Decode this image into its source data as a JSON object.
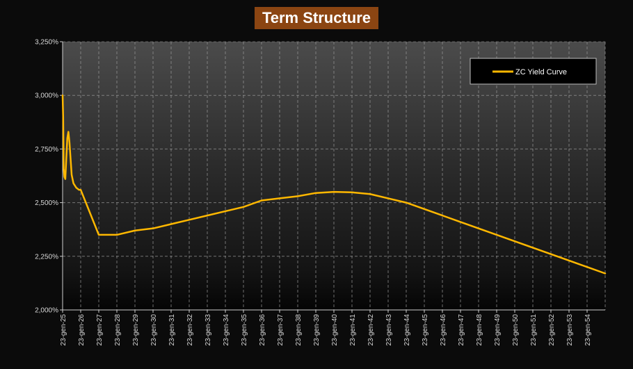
{
  "chart_data": {
    "type": "line",
    "title": "Term Structure",
    "xlabel": "",
    "ylabel": "",
    "ylim": [
      0.02,
      0.0325
    ],
    "y_ticks": [
      "2,000%",
      "2,250%",
      "2,500%",
      "2,750%",
      "3,000%",
      "3,250%"
    ],
    "x_ticks": [
      "23-gen-25",
      "23-gen-26",
      "23-gen-27",
      "23-gen-28",
      "23-gen-29",
      "23-gen-30",
      "23-gen-31",
      "23-gen-32",
      "23-gen-33",
      "23-gen-34",
      "23-gen-35",
      "23-gen-36",
      "23-gen-37",
      "23-gen-38",
      "23-gen-39",
      "23-gen-40",
      "23-gen-41",
      "23-gen-42",
      "23-gen-43",
      "23-gen-44",
      "23-gen-45",
      "23-gen-46",
      "23-gen-47",
      "23-gen-48",
      "23-gen-49",
      "23-gen-50",
      "23-gen-51",
      "23-gen-52",
      "23-gen-53",
      "23-gen-54"
    ],
    "grid": true,
    "legend_position": "top-right",
    "series": [
      {
        "name": "ZC Yield Curve",
        "color": "#ffb800",
        "x": [
          2025.0,
          2025.03,
          2025.06,
          2025.1,
          2025.15,
          2025.2,
          2025.26,
          2025.32,
          2025.38,
          2025.5,
          2025.6,
          2025.75,
          2025.9,
          2026.0,
          2027.0,
          2028.0,
          2029.0,
          2030.0,
          2031.0,
          2032.0,
          2033.0,
          2034.0,
          2035.0,
          2036.0,
          2037.0,
          2038.0,
          2039.0,
          2040.0,
          2041.0,
          2042.0,
          2043.0,
          2044.0,
          2045.0,
          2046.0,
          2047.0,
          2048.0,
          2049.0,
          2050.0,
          2051.0,
          2052.0,
          2053.0,
          2054.0,
          2055.0
        ],
        "y": [
          0.03,
          0.029,
          0.0266,
          0.0262,
          0.0261,
          0.027,
          0.028,
          0.0283,
          0.0278,
          0.0263,
          0.0259,
          0.0257,
          0.0256,
          0.0256,
          0.0235,
          0.0235,
          0.0237,
          0.0238,
          0.024,
          0.0242,
          0.0244,
          0.0246,
          0.0248,
          0.0251,
          0.0252,
          0.0253,
          0.02545,
          0.0255,
          0.02548,
          0.0254,
          0.0252,
          0.025,
          0.0247,
          0.0244,
          0.0241,
          0.0238,
          0.0235,
          0.0232,
          0.0229,
          0.0226,
          0.0223,
          0.022,
          0.0217
        ]
      }
    ]
  }
}
